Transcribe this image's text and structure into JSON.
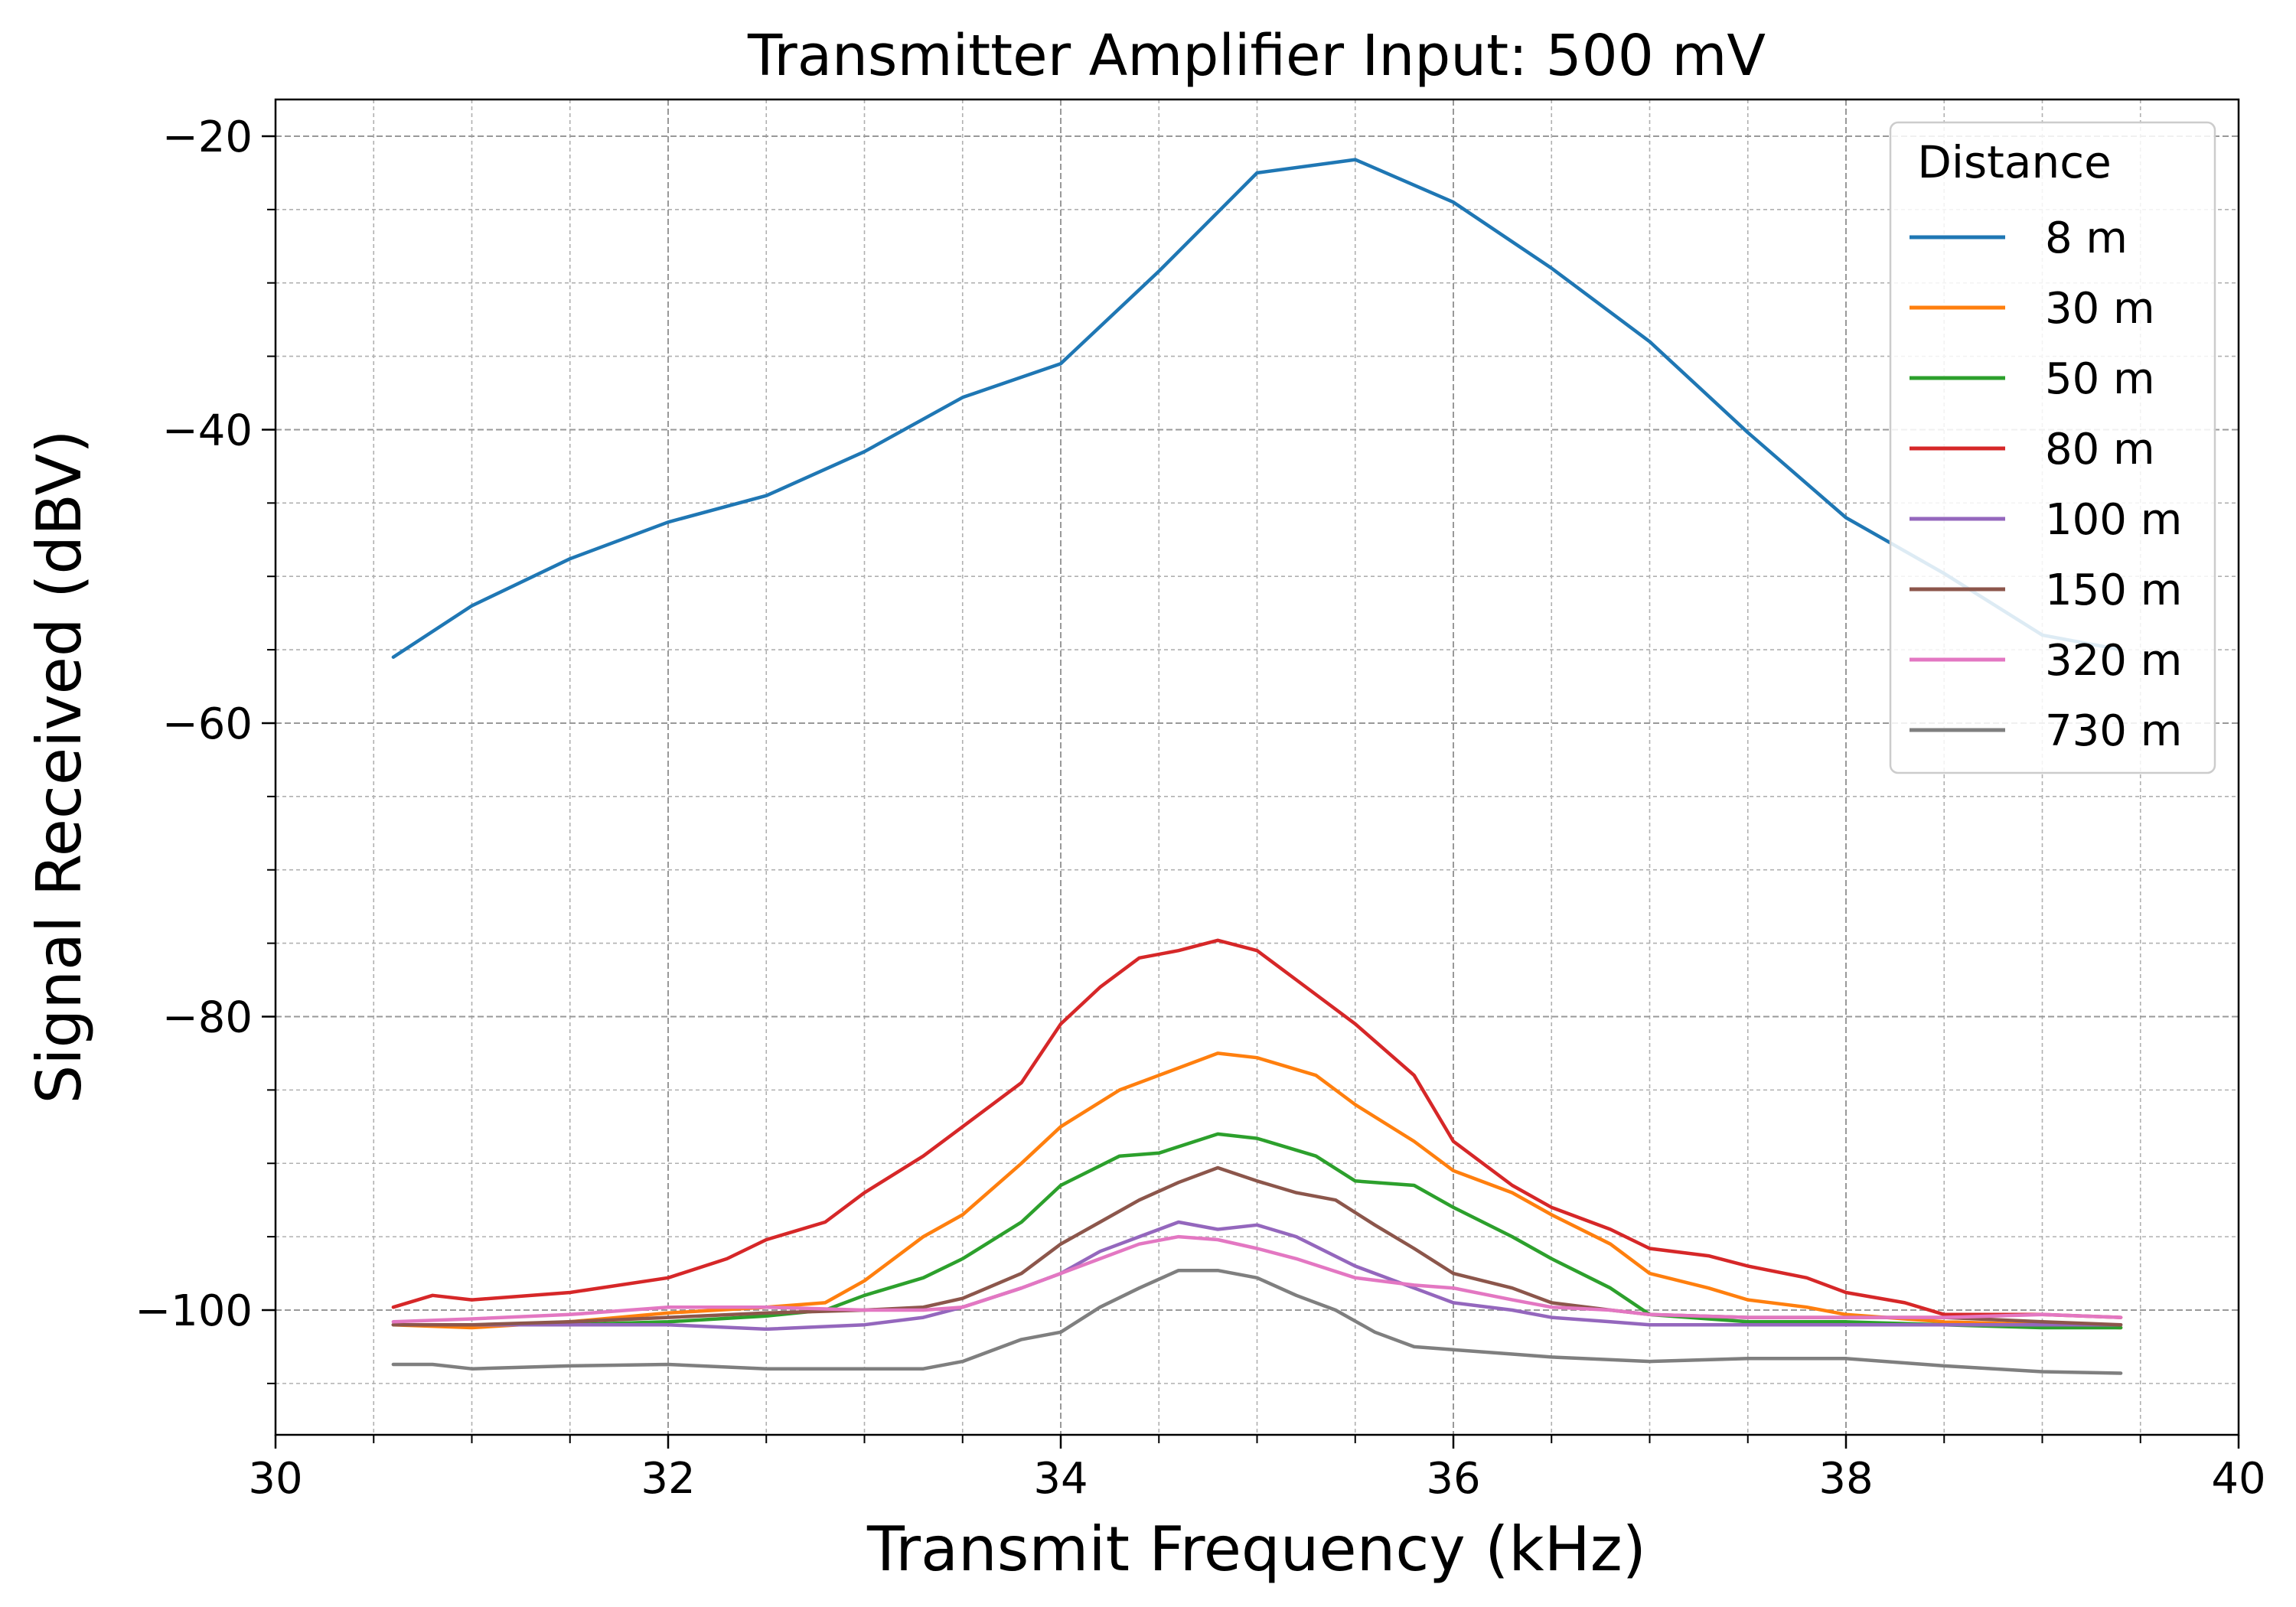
{
  "chart_data": {
    "type": "line",
    "title": "Transmitter Amplifier Input: 500 mV",
    "xlabel": "Transmit Frequency (kHz)",
    "ylabel": "Signal Received (dBV)",
    "xlim": [
      30,
      40
    ],
    "ylim": [
      -108.5,
      -17.5
    ],
    "xticks": [
      30,
      32,
      34,
      36,
      38,
      40
    ],
    "xtick_labels": [
      "30",
      "32",
      "34",
      "36",
      "38",
      "40"
    ],
    "yticks": [
      -20,
      -40,
      -60,
      -80,
      -100
    ],
    "ytick_labels": [
      "−20",
      "−40",
      "−60",
      "−80",
      "−100"
    ],
    "grid": true,
    "legend": {
      "title": "Distance",
      "placement": "top-right"
    },
    "series": [
      {
        "name": "8 m",
        "color": "#1f77b4",
        "x": [
          30.6,
          31.0,
          31.5,
          32.0,
          32.5,
          33.0,
          33.5,
          34.0,
          34.5,
          35.0,
          35.5,
          36.0,
          36.5,
          37.0,
          37.5,
          38.0,
          38.5,
          39.0,
          39.4
        ],
        "y": [
          -55.5,
          -52.0,
          -48.8,
          -46.3,
          -44.5,
          -41.5,
          -37.8,
          -35.5,
          -29.2,
          -22.5,
          -21.6,
          -24.5,
          -29.0,
          -34.0,
          -40.2,
          -46.0,
          -49.8,
          -54.0,
          -55.0
        ]
      },
      {
        "name": "30 m",
        "color": "#ff7f0e",
        "x": [
          30.6,
          31.0,
          31.5,
          32.0,
          32.5,
          32.8,
          33.0,
          33.3,
          33.5,
          33.8,
          34.0,
          34.3,
          34.5,
          34.8,
          35.0,
          35.3,
          35.5,
          35.8,
          36.0,
          36.3,
          36.5,
          36.8,
          37.0,
          37.3,
          37.5,
          37.8,
          38.0,
          38.5,
          39.0,
          39.4
        ],
        "y": [
          -101.0,
          -101.2,
          -100.8,
          -100.2,
          -99.8,
          -99.5,
          -98.0,
          -95.0,
          -93.5,
          -90.0,
          -87.5,
          -85.0,
          -84.0,
          -82.5,
          -82.8,
          -84.0,
          -86.0,
          -88.5,
          -90.5,
          -92.0,
          -93.5,
          -95.5,
          -97.5,
          -98.5,
          -99.3,
          -99.8,
          -100.3,
          -100.8,
          -101.0,
          -101.2
        ]
      },
      {
        "name": "50 m",
        "color": "#2ca02c",
        "x": [
          30.6,
          31.0,
          31.5,
          32.0,
          32.5,
          32.8,
          33.0,
          33.3,
          33.5,
          33.8,
          34.0,
          34.3,
          34.5,
          34.8,
          35.0,
          35.3,
          35.5,
          35.8,
          36.0,
          36.3,
          36.5,
          36.8,
          37.0,
          37.5,
          38.0,
          38.5,
          39.0,
          39.4
        ],
        "y": [
          -101.0,
          -101.0,
          -101.0,
          -100.8,
          -100.4,
          -100.0,
          -99.0,
          -97.8,
          -96.5,
          -94.0,
          -91.5,
          -89.5,
          -89.3,
          -88.0,
          -88.3,
          -89.5,
          -91.2,
          -91.5,
          -93.0,
          -95.0,
          -96.5,
          -98.5,
          -100.3,
          -100.8,
          -100.8,
          -101.0,
          -101.2,
          -101.2
        ]
      },
      {
        "name": "80 m",
        "color": "#d62728",
        "x": [
          30.6,
          30.8,
          31.0,
          31.5,
          32.0,
          32.3,
          32.5,
          32.8,
          33.0,
          33.3,
          33.5,
          33.8,
          34.0,
          34.2,
          34.4,
          34.6,
          34.8,
          35.0,
          35.2,
          35.5,
          35.8,
          36.0,
          36.3,
          36.5,
          36.8,
          37.0,
          37.3,
          37.5,
          37.8,
          38.0,
          38.3,
          38.5,
          39.0,
          39.4
        ],
        "y": [
          -99.8,
          -99.0,
          -99.3,
          -98.8,
          -97.8,
          -96.5,
          -95.2,
          -94.0,
          -92.0,
          -89.5,
          -87.5,
          -84.5,
          -80.5,
          -78.0,
          -76.0,
          -75.5,
          -74.8,
          -75.5,
          -77.5,
          -80.5,
          -84.0,
          -88.5,
          -91.5,
          -93.0,
          -94.5,
          -95.8,
          -96.3,
          -97.0,
          -97.8,
          -98.8,
          -99.5,
          -100.3,
          -100.3,
          -100.5
        ]
      },
      {
        "name": "100 m",
        "color": "#9467bd",
        "x": [
          30.6,
          31.0,
          31.5,
          32.0,
          32.5,
          33.0,
          33.3,
          33.5,
          33.8,
          34.0,
          34.2,
          34.4,
          34.6,
          34.8,
          35.0,
          35.2,
          35.5,
          35.8,
          36.0,
          36.3,
          36.5,
          36.8,
          37.0,
          37.5,
          38.0,
          38.5,
          39.0,
          39.4
        ],
        "y": [
          -101.0,
          -101.0,
          -101.0,
          -101.0,
          -101.3,
          -101.0,
          -100.5,
          -99.8,
          -98.5,
          -97.5,
          -96.0,
          -95.0,
          -94.0,
          -94.5,
          -94.2,
          -95.0,
          -97.0,
          -98.5,
          -99.5,
          -100.0,
          -100.5,
          -100.8,
          -101.0,
          -101.0,
          -101.0,
          -101.0,
          -101.0,
          -101.0
        ]
      },
      {
        "name": "150 m",
        "color": "#8c564b",
        "x": [
          30.6,
          31.0,
          31.5,
          32.0,
          32.5,
          33.0,
          33.3,
          33.5,
          33.8,
          34.0,
          34.2,
          34.4,
          34.6,
          34.8,
          35.0,
          35.2,
          35.4,
          35.6,
          35.8,
          36.0,
          36.3,
          36.5,
          36.8,
          37.0,
          37.5,
          38.0,
          38.5,
          39.0,
          39.4
        ],
        "y": [
          -101.0,
          -101.0,
          -100.8,
          -100.5,
          -100.2,
          -100.0,
          -99.8,
          -99.2,
          -97.5,
          -95.5,
          -94.0,
          -92.5,
          -91.3,
          -90.3,
          -91.2,
          -92.0,
          -92.5,
          -94.2,
          -95.8,
          -97.5,
          -98.5,
          -99.5,
          -100.0,
          -100.3,
          -100.5,
          -100.5,
          -100.5,
          -100.8,
          -101.0
        ]
      },
      {
        "name": "320 m",
        "color": "#e377c2",
        "x": [
          30.6,
          31.0,
          31.5,
          32.0,
          32.5,
          33.0,
          33.3,
          33.5,
          33.8,
          34.0,
          34.2,
          34.4,
          34.6,
          34.8,
          35.0,
          35.2,
          35.5,
          35.8,
          36.0,
          36.3,
          36.5,
          36.8,
          37.0,
          37.5,
          38.0,
          38.5,
          39.0,
          39.4
        ],
        "y": [
          -100.8,
          -100.6,
          -100.3,
          -99.8,
          -99.8,
          -100.0,
          -100.0,
          -99.8,
          -98.5,
          -97.5,
          -96.5,
          -95.5,
          -95.0,
          -95.2,
          -95.8,
          -96.5,
          -97.8,
          -98.3,
          -98.5,
          -99.3,
          -99.8,
          -100.0,
          -100.3,
          -100.5,
          -100.5,
          -100.5,
          -100.3,
          -100.5
        ]
      },
      {
        "name": "730 m",
        "color": "#7f7f7f",
        "x": [
          30.6,
          30.8,
          31.0,
          31.5,
          32.0,
          32.5,
          33.0,
          33.3,
          33.5,
          33.8,
          34.0,
          34.2,
          34.4,
          34.6,
          34.8,
          35.0,
          35.2,
          35.4,
          35.6,
          35.8,
          36.0,
          36.3,
          36.5,
          37.0,
          37.5,
          38.0,
          38.5,
          39.0,
          39.4
        ],
        "y": [
          -103.7,
          -103.7,
          -104.0,
          -103.8,
          -103.7,
          -104.0,
          -104.0,
          -104.0,
          -103.5,
          -102.0,
          -101.5,
          -99.8,
          -98.5,
          -97.3,
          -97.3,
          -97.8,
          -99.0,
          -100.0,
          -101.5,
          -102.5,
          -102.7,
          -103.0,
          -103.2,
          -103.5,
          -103.3,
          -103.3,
          -103.8,
          -104.2,
          -104.3
        ]
      }
    ]
  }
}
